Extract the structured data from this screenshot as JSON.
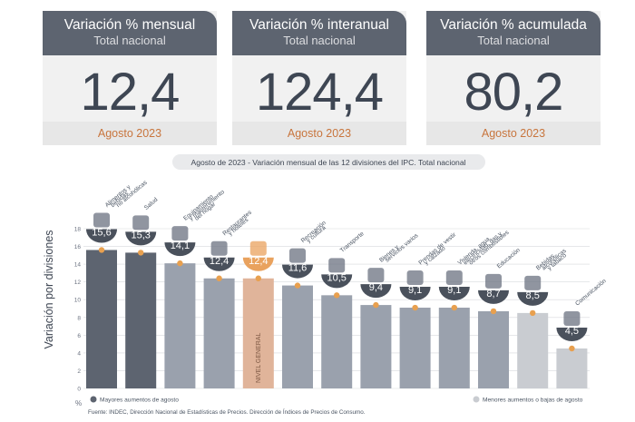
{
  "cards": [
    {
      "title": "Variación % mensual",
      "subtitle": "Total nacional",
      "value": "12,4",
      "period": "Agosto 2023"
    },
    {
      "title": "Variación % interanual",
      "subtitle": "Total nacional",
      "value": "124,4",
      "period": "Agosto 2023"
    },
    {
      "title": "Variación % acumulada",
      "subtitle": "Total nacional",
      "value": "80,2",
      "period": "Agosto 2023"
    }
  ],
  "chart_data": {
    "type": "bar",
    "title": "Agosto de 2023 - Variación mensual de las 12 divisiones del IPC. Total nacional",
    "ylabel": "Variación por divisiones",
    "yunit": "%",
    "ylim": [
      0,
      18
    ],
    "yticks": [
      0,
      2,
      4,
      6,
      8,
      10,
      12,
      14,
      16,
      18
    ],
    "grid": true,
    "categories": [
      "Alimentos y bebidas no alcohólicas",
      "Salud",
      "Equipamiento y mantenimiento del hogar",
      "Restaurantes y hoteles",
      "NIVEL GENERAL",
      "Recreación y cultura",
      "Transporte",
      "Bienes y servicios varios",
      "Prendas de vestir y calzado",
      "Vivienda, agua, electricidad, gas y otros combustibles",
      "Educación",
      "Bebidas alcohólicas y tabaco",
      "Comunicación"
    ],
    "label_lines": [
      [
        "Alimentos y",
        "bebidas",
        "no alcohólicas"
      ],
      [
        "Salud"
      ],
      [
        "Equipamiento",
        "y mantenimiento",
        "del hogar"
      ],
      [
        "Restaurantes",
        "y hoteles"
      ],
      [],
      [
        "Recreación",
        "y cultura"
      ],
      [
        "Transporte"
      ],
      [
        "Bienes y",
        "servicios varios"
      ],
      [
        "Prendas de vestir",
        "y calzado"
      ],
      [
        "Vivienda, agua,",
        "electricidad, gas y",
        "otros combustibles"
      ],
      [
        "Educación"
      ],
      [
        "Bebidas",
        "alcohólicas",
        "y tabaco"
      ],
      [
        "Comunicación"
      ]
    ],
    "bar_text": [
      "",
      "",
      "",
      "",
      "NIVEL GENERAL",
      "",
      "",
      "",
      "",
      "",
      "",
      "",
      ""
    ],
    "values": [
      15.6,
      15.3,
      14.1,
      12.4,
      12.4,
      11.6,
      10.5,
      9.4,
      9.1,
      9.1,
      8.7,
      8.5,
      4.5
    ],
    "value_labels": [
      "15,6",
      "15,3",
      "14,1",
      "12,4",
      "12,4",
      "11,6",
      "10,5",
      "9,4",
      "9,1",
      "9,1",
      "8,7",
      "8,5",
      "4,5"
    ],
    "groups": [
      "high",
      "high",
      "high",
      "high",
      "general",
      "high",
      "high",
      "high",
      "high",
      "high",
      "high",
      "low",
      "low"
    ],
    "legend": [
      {
        "name": "Mayores aumentos de agosto",
        "color": "#5d6470",
        "placement": "bottom-left"
      },
      {
        "name": "Menores aumentos o bajas de agosto",
        "color": "#c9ccd1",
        "placement": "bottom-right"
      }
    ],
    "colors": {
      "high": "#9aa1ad",
      "high_dark": "#5d6470",
      "general": "#e0b49a",
      "low": "#c9ccd1",
      "marker": "#e8a04f",
      "value_bubble": "#4a515c"
    },
    "source": "Fuente: INDEC, Dirección Nacional de Estadísticas de Precios. Dirección de Índices de Precios de Consumo."
  }
}
